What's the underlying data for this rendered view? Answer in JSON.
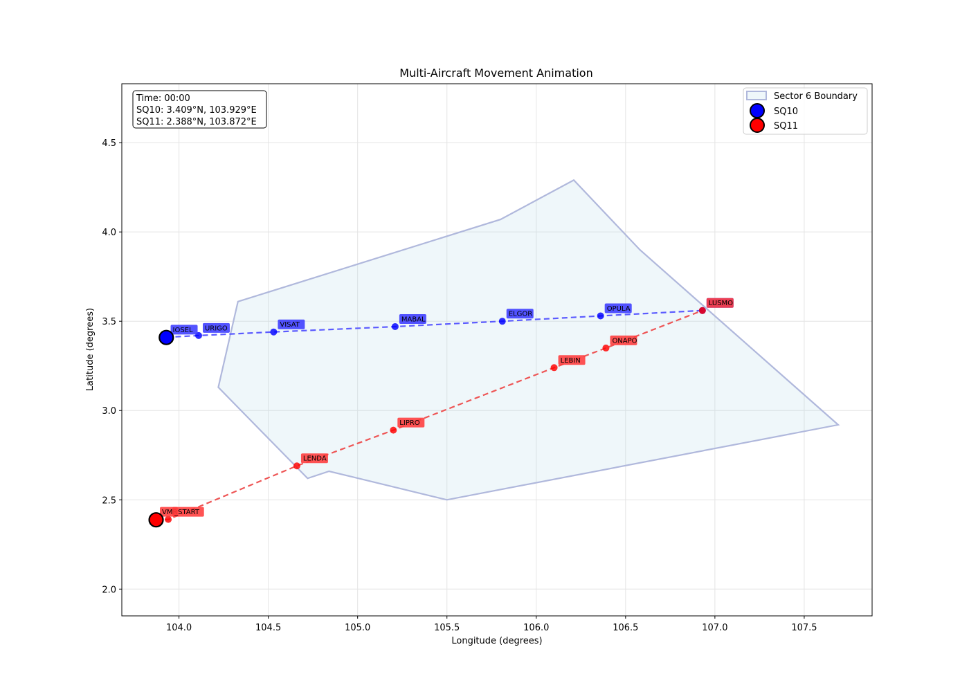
{
  "chart_data": {
    "type": "scatter",
    "title": "Multi-Aircraft Movement Animation",
    "xlabel": "Longitude (degrees)",
    "ylabel": "Latitude (degrees)",
    "xlim": [
      103.68,
      107.88
    ],
    "ylim": [
      1.85,
      4.83
    ],
    "xticks": [
      104.0,
      104.5,
      105.0,
      105.5,
      106.0,
      106.5,
      107.0,
      107.5
    ],
    "xtick_labels": [
      "104.0",
      "104.5",
      "105.0",
      "105.5",
      "106.0",
      "106.5",
      "107.0",
      "107.5"
    ],
    "yticks": [
      2.0,
      2.5,
      3.0,
      3.5,
      4.0,
      4.5
    ],
    "ytick_labels": [
      "2.0",
      "2.5",
      "3.0",
      "3.5",
      "4.0",
      "4.5"
    ],
    "grid": true,
    "legend_position": "top-right",
    "sector": {
      "name": "Sector 6 Boundary",
      "fill_color": "#add8e6",
      "edge_color": "#b0b8dc",
      "points": [
        [
          104.33,
          3.61
        ],
        [
          105.8,
          4.07
        ],
        [
          106.21,
          4.29
        ],
        [
          106.58,
          3.9
        ],
        [
          107.69,
          2.92
        ],
        [
          105.5,
          2.5
        ],
        [
          104.84,
          2.66
        ],
        [
          104.72,
          2.62
        ],
        [
          104.22,
          3.13
        ],
        [
          104.33,
          3.61
        ]
      ]
    },
    "series": [
      {
        "name": "SQ10",
        "color": "#0000ff",
        "route_color": "#5b5bff",
        "label_bg": "#3b3bff",
        "waypoints": [
          {
            "label": "IOSEL",
            "x": 103.93,
            "y": 3.41
          },
          {
            "label": "URIGO",
            "x": 104.11,
            "y": 3.42
          },
          {
            "label": "VISAT",
            "x": 104.53,
            "y": 3.44
          },
          {
            "label": "MABAL",
            "x": 105.21,
            "y": 3.47
          },
          {
            "label": "ELGOR",
            "x": 105.81,
            "y": 3.5
          },
          {
            "label": "OPULA",
            "x": 106.36,
            "y": 3.53
          },
          {
            "label": "LUSMO",
            "x": 106.93,
            "y": 3.56
          }
        ],
        "current": {
          "x": 103.929,
          "y": 3.409
        }
      },
      {
        "name": "SQ11",
        "color": "#ff0000",
        "route_color": "#ee5555",
        "label_bg": "#ff3b3b",
        "waypoints": [
          {
            "label": "VMR",
            "x": 103.87,
            "y": 2.39
          },
          {
            "label": "_START",
            "x": 103.94,
            "y": 2.39
          },
          {
            "label": "LENDA",
            "x": 104.66,
            "y": 2.69
          },
          {
            "label": "LIPRO",
            "x": 105.2,
            "y": 2.89
          },
          {
            "label": "LEBIN",
            "x": 106.1,
            "y": 3.24
          },
          {
            "label": "ONAPO",
            "x": 106.39,
            "y": 3.35
          },
          {
            "label": "LUSMO",
            "x": 106.93,
            "y": 3.56
          }
        ],
        "current": {
          "x": 103.872,
          "y": 2.388
        }
      }
    ],
    "info_box": {
      "time": "Time: 00:00",
      "sq10": "SQ10: 3.409°N, 103.929°E",
      "sq11": "SQ11: 2.388°N, 103.872°E"
    },
    "legend": [
      "Sector 6 Boundary",
      "SQ10",
      "SQ11"
    ]
  }
}
